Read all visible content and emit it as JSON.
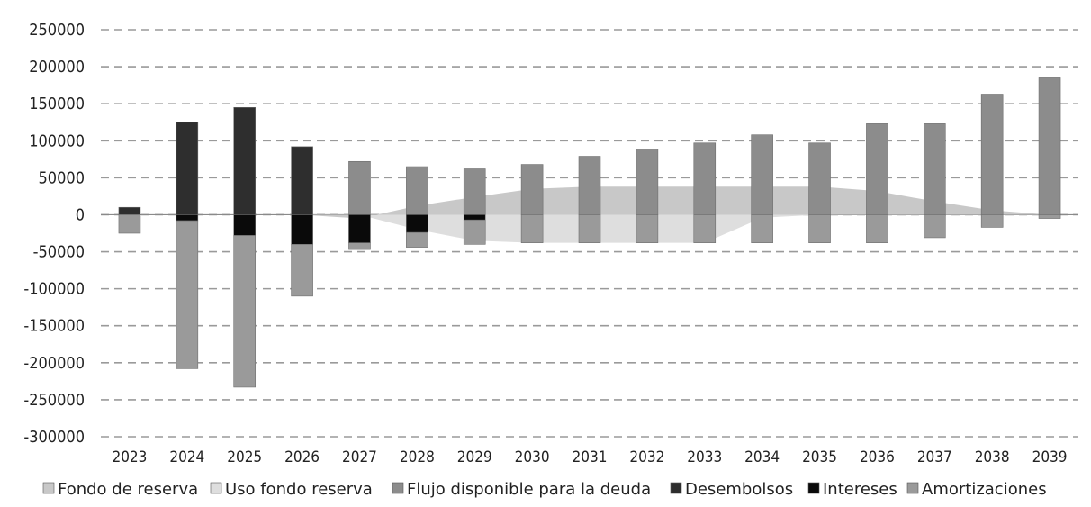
{
  "chart_data": {
    "type": "bar",
    "stacked": true,
    "title": "",
    "xlabel": "",
    "ylabel": "",
    "ylim": [
      -300000,
      250000
    ],
    "yticks": [
      250000,
      200000,
      150000,
      100000,
      50000,
      0,
      -50000,
      -100000,
      -150000,
      -200000,
      -250000,
      -300000
    ],
    "grid": "dashed horizontal",
    "legend_position": "bottom",
    "categories": [
      "2023",
      "2024",
      "2025",
      "2026",
      "2027",
      "2028",
      "2029",
      "2030",
      "2031",
      "2032",
      "2033",
      "2034",
      "2035",
      "2036",
      "2037",
      "2038",
      "2039"
    ],
    "series": [
      {
        "name": "Fondo de reserva",
        "kind": "area",
        "color": "#c8c8c8",
        "values": [
          0,
          0,
          0,
          0,
          -5000,
          12000,
          24000,
          35000,
          38000,
          38000,
          38000,
          38000,
          38000,
          32000,
          18000,
          6000,
          0
        ]
      },
      {
        "name": "Uso fondo reserva",
        "kind": "area",
        "color": "#dedede",
        "values": [
          0,
          0,
          0,
          0,
          0,
          -20000,
          -35000,
          -38000,
          -38000,
          -38000,
          -38000,
          -4000,
          0,
          0,
          0,
          0,
          0
        ]
      },
      {
        "name": "Flujo disponible para la deuda",
        "kind": "bar",
        "color": "#8c8c8c",
        "values": [
          0,
          0,
          0,
          0,
          72000,
          65000,
          62000,
          68000,
          79000,
          89000,
          97000,
          108000,
          97000,
          123000,
          123000,
          163000,
          185000
        ]
      },
      {
        "name": "Desembolsos",
        "kind": "bar",
        "color": "#2e2e2e",
        "values": [
          10000,
          125000,
          145000,
          92000,
          0,
          0,
          0,
          0,
          0,
          0,
          0,
          0,
          0,
          0,
          0,
          0,
          0
        ]
      },
      {
        "name": "Intereses",
        "kind": "bar",
        "color": "#0a0a0a",
        "values": [
          0,
          -8000,
          -28000,
          -40000,
          -38000,
          -24000,
          -7000,
          0,
          0,
          0,
          0,
          0,
          0,
          0,
          0,
          0,
          0
        ]
      },
      {
        "name": "Amortizaciones",
        "kind": "bar",
        "color": "#9a9a9a",
        "values": [
          -25000,
          -200000,
          -205000,
          -70000,
          -9000,
          -20000,
          -33000,
          -38000,
          -38000,
          -38000,
          -38000,
          -38000,
          -38000,
          -38000,
          -31000,
          -17000,
          -5000
        ]
      }
    ]
  }
}
